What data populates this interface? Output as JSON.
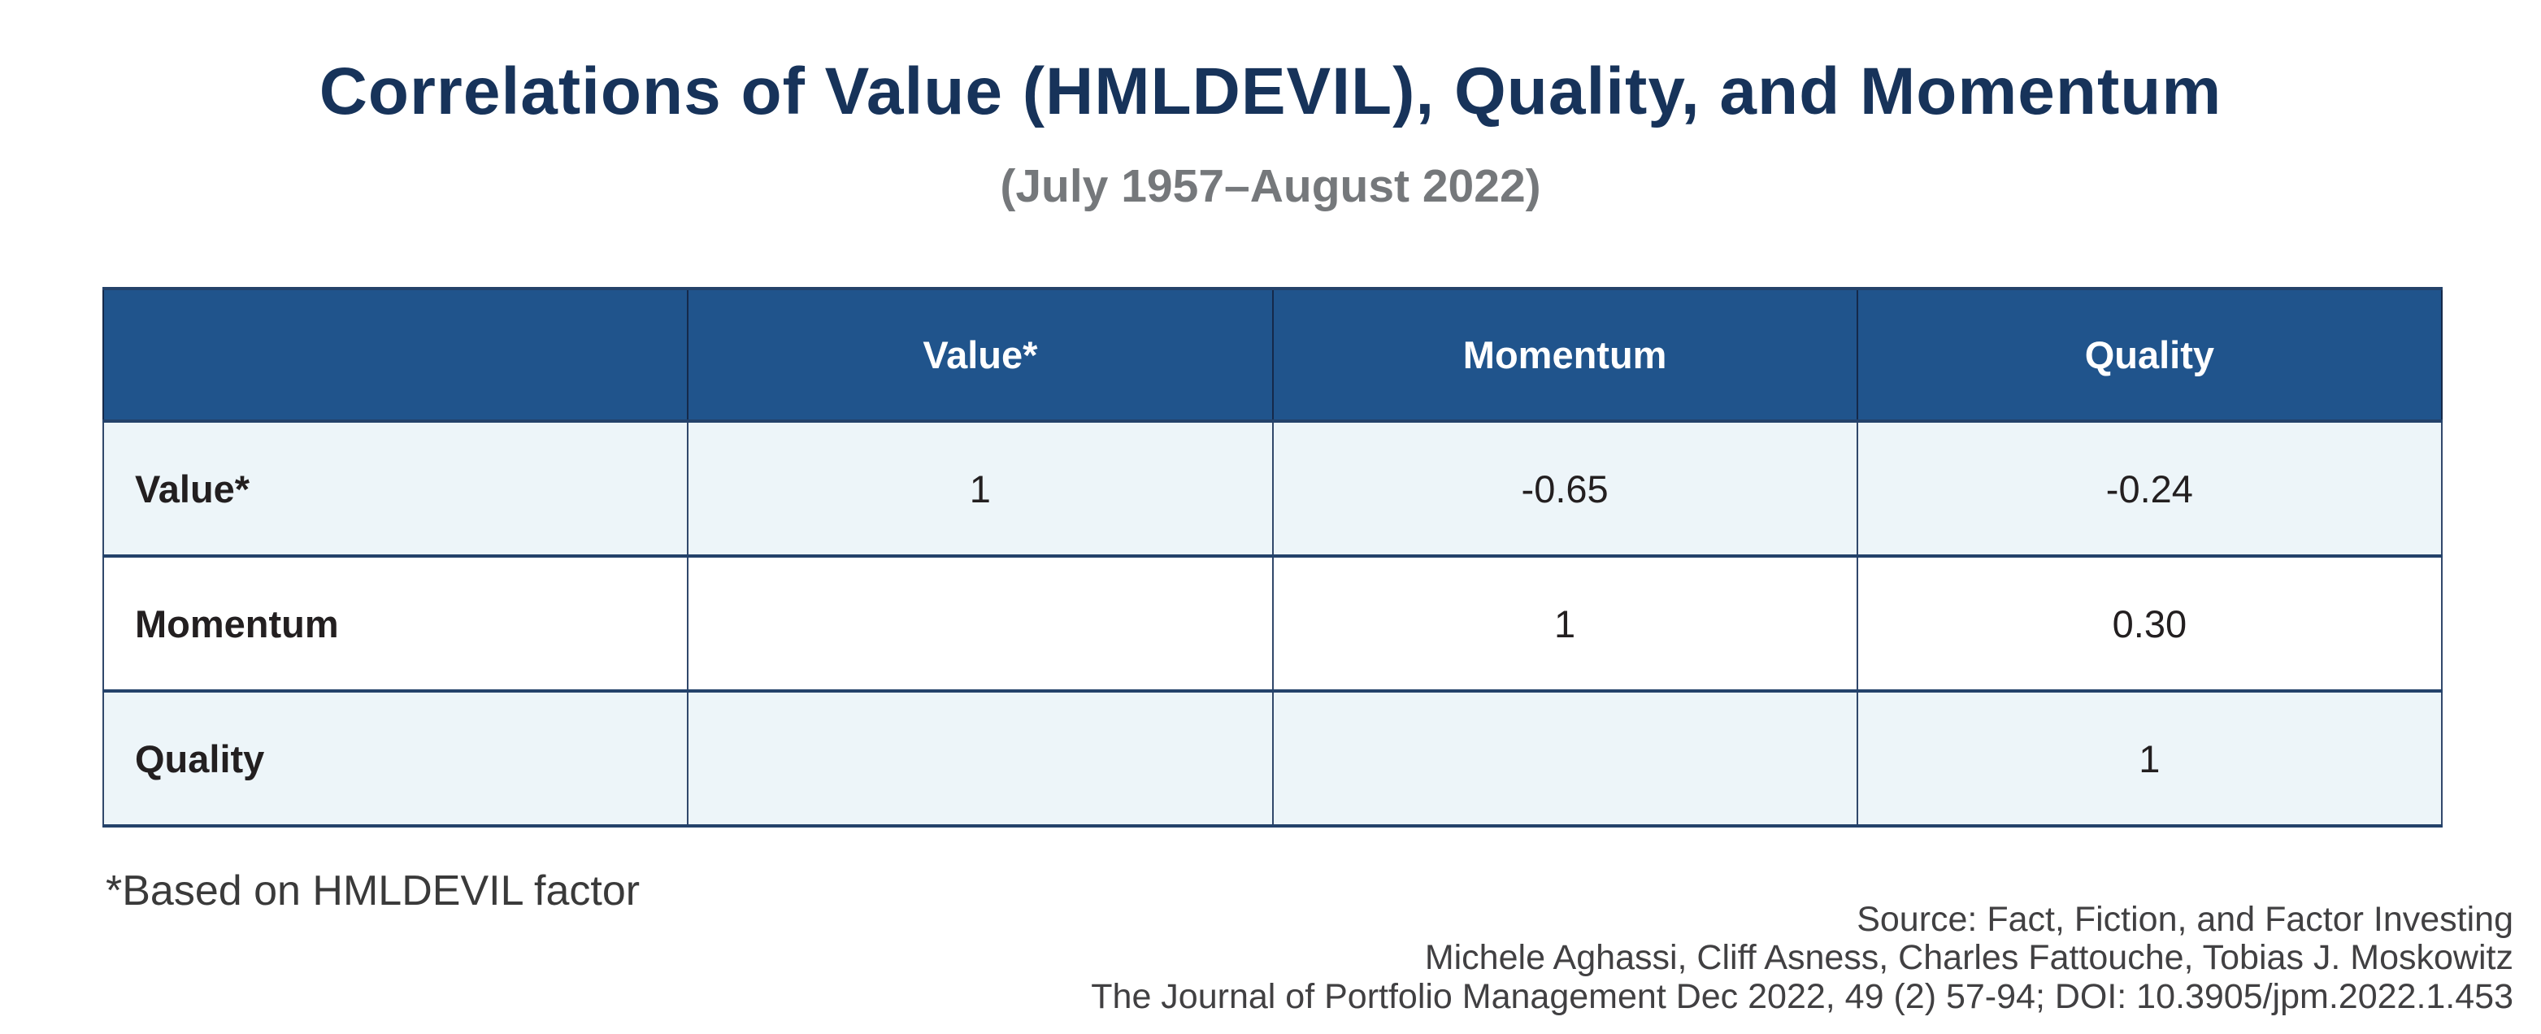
{
  "title": "Correlations of Value (HMLDEVIL), Quality, and Momentum",
  "subtitle": "(July 1957–August 2022)",
  "table": {
    "columns": [
      "",
      "Value*",
      "Momentum",
      "Quality"
    ],
    "rows": [
      {
        "label": "Value*",
        "values": [
          "1",
          "-0.65",
          "-0.24"
        ]
      },
      {
        "label": "Momentum",
        "values": [
          "",
          "1",
          "0.30"
        ]
      },
      {
        "label": "Quality",
        "values": [
          "",
          "",
          "1"
        ]
      }
    ]
  },
  "footnote": "*Based on HMLDEVIL factor",
  "source": {
    "lines": [
      "Source: Fact, Fiction, and Factor Investing",
      "Michele Aghassi, Cliff Asness, Charles Fattouche, Tobias J. Moskowitz",
      "The Journal of Portfolio Management Dec 2022, 49 (2) 57-94; DOI: 10.3905/jpm.2022.1.453"
    ]
  },
  "colors": {
    "title_text": "#17335a",
    "subtitle_text": "#75787b",
    "header_bg": "#20548c",
    "header_text": "#ffffff",
    "row_alt_bg": "#edf5f9",
    "row_plain_bg": "#ffffff",
    "border_navy": "#24426a",
    "cell_text": "#231f20",
    "footnote_text": "#3a3a3a",
    "source_text": "#414042"
  },
  "chart_data": {
    "type": "table",
    "title": "Correlations of Value (HMLDEVIL), Quality, and Momentum",
    "subtitle": "(July 1957–August 2022)",
    "columns": [
      "",
      "Value*",
      "Momentum",
      "Quality"
    ],
    "rows": [
      [
        "Value*",
        1,
        -0.65,
        -0.24
      ],
      [
        "Momentum",
        null,
        1,
        0.3
      ],
      [
        "Quality",
        null,
        null,
        1
      ]
    ],
    "notes": [
      "*Based on HMLDEVIL factor",
      "Source: Fact, Fiction, and Factor Investing",
      "Michele Aghassi, Cliff Asness, Charles Fattouche, Tobias J. Moskowitz",
      "The Journal of Portfolio Management Dec 2022, 49 (2) 57-94; DOI: 10.3905/jpm.2022.1.453"
    ]
  }
}
